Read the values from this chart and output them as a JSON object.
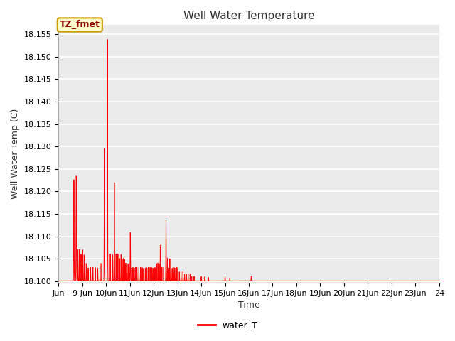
{
  "title": "Well Water Temperature",
  "xlabel": "Time",
  "ylabel": "Well Water Temp (C)",
  "line_color": "#ff0000",
  "line_label": "water_T",
  "annotation_text": "TZ_fmet",
  "annotation_bbox_facecolor": "#ffffcc",
  "annotation_bbox_edgecolor": "#cc9900",
  "figure_facecolor": "#ffffff",
  "plot_bg_color": "#ebebeb",
  "grid_color": "#ffffff",
  "ylim": [
    18.0997,
    18.157
  ],
  "yticks": [
    18.1,
    18.105,
    18.11,
    18.115,
    18.12,
    18.125,
    18.13,
    18.135,
    18.14,
    18.145,
    18.15,
    18.155
  ],
  "x_start_day": 8,
  "x_end_day": 24,
  "x_tick_days": [
    8,
    9,
    10,
    11,
    12,
    13,
    14,
    15,
    16,
    17,
    18,
    19,
    20,
    21,
    22,
    23,
    24
  ],
  "x_tick_labels": [
    "Jun",
    "9 Jun",
    "10Jun",
    "11Jun",
    "12Jun",
    "13Jun",
    "14Jun",
    "15Jun",
    "16Jun",
    "17Jun",
    "18Jun",
    "19Jun",
    "20Jun",
    "21Jun",
    "22Jun",
    "23Jun",
    "24"
  ]
}
